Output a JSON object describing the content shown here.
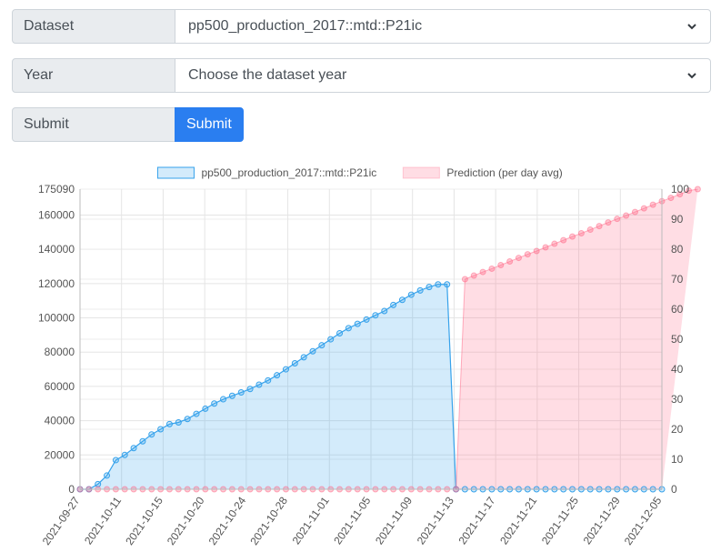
{
  "form": {
    "dataset_label": "Dataset",
    "dataset_value": "pp500_production_2017::mtd::P21ic",
    "year_label": "Year",
    "year_value": "Choose the dataset year",
    "submit_label": "Submit",
    "submit_button": "Submit"
  },
  "chart_data": {
    "type": "line",
    "legend_position": "top",
    "grid": true,
    "x_labels": [
      "2021-09-27",
      "2021-10-11",
      "2021-10-15",
      "2021-10-20",
      "2021-10-24",
      "2021-10-28",
      "2021-11-01",
      "2021-11-05",
      "2021-11-09",
      "2021-11-13",
      "2021-11-17",
      "2021-11-21",
      "2021-11-25",
      "2021-11-29",
      "2021-12-05"
    ],
    "y_left": {
      "range": [
        0,
        175090
      ],
      "ticks": [
        "0",
        "20000",
        "40000",
        "60000",
        "80000",
        "100000",
        "120000",
        "140000",
        "160000",
        "175090"
      ]
    },
    "y_right": {
      "range": [
        0,
        100
      ],
      "ticks": [
        "0",
        "10",
        "20",
        "30",
        "40",
        "50",
        "60",
        "70",
        "80",
        "90",
        "100"
      ]
    },
    "series": [
      {
        "name": "pp500_production_2017::mtd::P21ic",
        "axis": "left",
        "color": "#36a2eb",
        "values": [
          0,
          0,
          3000,
          8000,
          17000,
          20000,
          24000,
          28000,
          32000,
          35000,
          38000,
          39000,
          41000,
          44000,
          47000,
          50000,
          52500,
          54500,
          56500,
          58500,
          61000,
          63500,
          66500,
          70000,
          73500,
          77000,
          80500,
          84000,
          87500,
          91000,
          94000,
          96500,
          99000,
          101500,
          104000,
          107500,
          110500,
          113500,
          116000,
          118000,
          119500,
          119500,
          0,
          0,
          0,
          0,
          0,
          0,
          0,
          0,
          0,
          0,
          0,
          0,
          0,
          0,
          0,
          0,
          0,
          0,
          0,
          0,
          0,
          0,
          0,
          0
        ]
      },
      {
        "name": "Prediction (per day avg)",
        "axis": "right",
        "color": "#ff6384",
        "values": [
          0,
          0,
          0,
          0,
          0,
          0,
          0,
          0,
          0,
          0,
          0,
          0,
          0,
          0,
          0,
          0,
          0,
          0,
          0,
          0,
          0,
          0,
          0,
          0,
          0,
          0,
          0,
          0,
          0,
          0,
          0,
          0,
          0,
          0,
          0,
          0,
          0,
          0,
          0,
          0,
          0,
          0,
          0,
          70,
          71.2,
          72.4,
          73.5,
          74.7,
          75.9,
          77.1,
          78.3,
          79.4,
          80.6,
          81.8,
          83,
          84.2,
          85.3,
          86.5,
          87.7,
          88.9,
          90.1,
          91.2,
          92.4,
          93.6,
          94.8,
          96,
          97.1,
          98.3,
          99.5,
          100
        ]
      }
    ]
  }
}
